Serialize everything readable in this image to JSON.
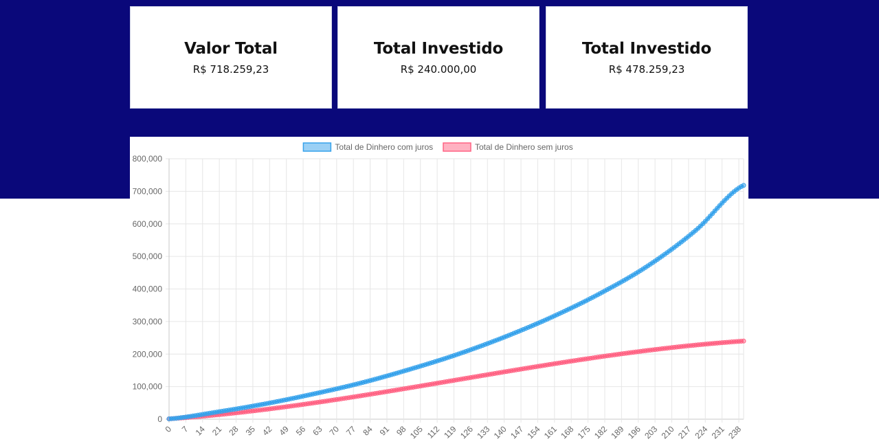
{
  "cards": [
    {
      "title": "Valor Total",
      "value": "R$ 718.259,23"
    },
    {
      "title": "Total Investido",
      "value": "R$ 240.000,00"
    },
    {
      "title": "Total Investido",
      "value": "R$ 478.259,23"
    }
  ],
  "colors": {
    "band": "#0a087a",
    "series_com_juros": "#36a2eb",
    "series_sem_juros": "#ff6384"
  },
  "chart_data": {
    "type": "line",
    "title": "",
    "xlabel": "",
    "ylabel": "",
    "legend_position": "top",
    "grid": true,
    "x_range": [
      0,
      240
    ],
    "x_tick_labels": [
      "0",
      "7",
      "14",
      "21",
      "28",
      "35",
      "42",
      "49",
      "56",
      "63",
      "70",
      "77",
      "84",
      "91",
      "98",
      "105",
      "112",
      "119",
      "126",
      "133",
      "140",
      "147",
      "154",
      "161",
      "168",
      "175",
      "182",
      "189",
      "196",
      "203",
      "210",
      "217",
      "224",
      "231",
      "238"
    ],
    "y_tick_labels": [
      "0",
      "100,000",
      "200,000",
      "300,000",
      "400,000",
      "500,000",
      "600,000",
      "700,000",
      "800,000"
    ],
    "ylim": [
      0,
      800000
    ],
    "series": [
      {
        "name": "Total de Dinhero com juros",
        "color": "#36a2eb",
        "x": [
          0,
          20,
          40,
          60,
          80,
          100,
          120,
          140,
          160,
          180,
          200,
          220,
          240
        ],
        "values": [
          1000,
          22000,
          47000,
          77000,
          111000,
          152000,
          198000,
          252000,
          314000,
          386000,
          471000,
          580000,
          718259
        ]
      },
      {
        "name": "Total de Dinhero sem juros",
        "color": "#ff6384",
        "x": [
          0,
          240
        ],
        "values": [
          1000,
          240000
        ]
      }
    ]
  }
}
